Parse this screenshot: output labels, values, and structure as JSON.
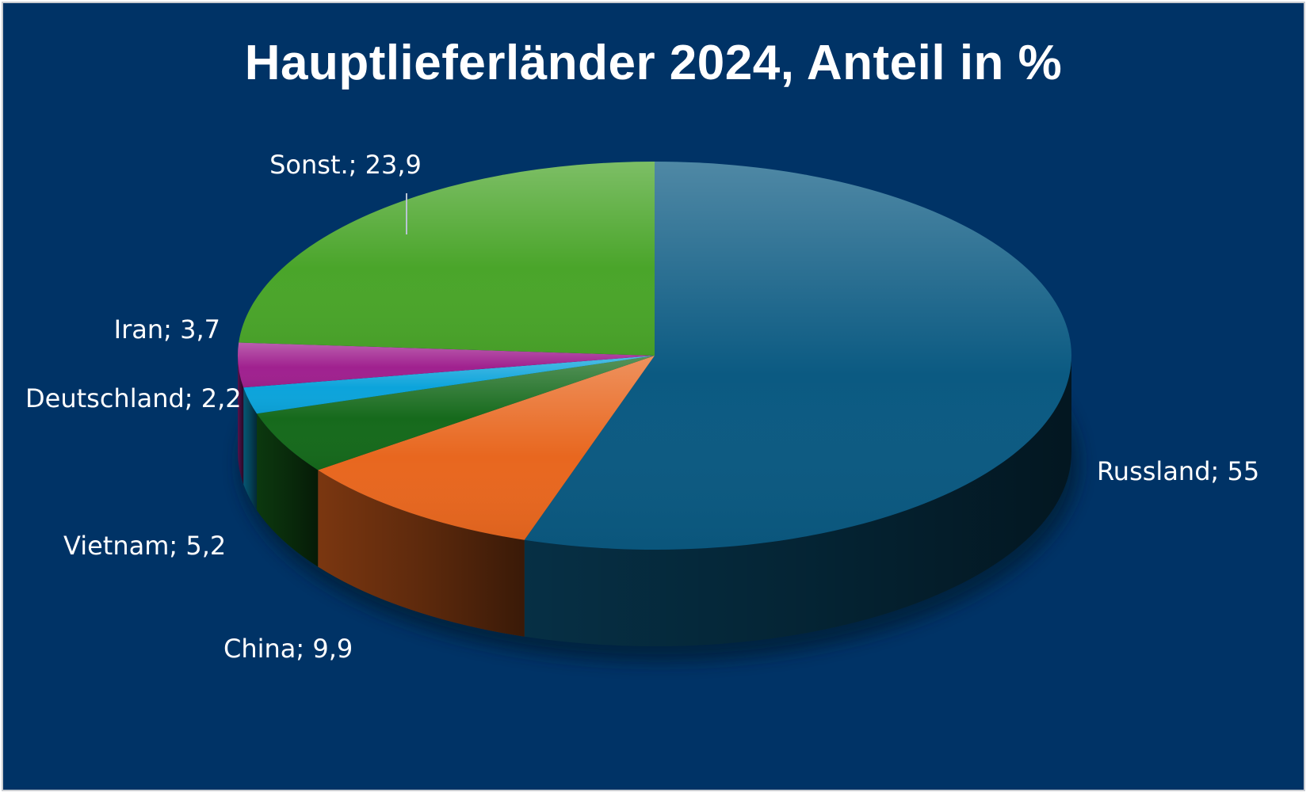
{
  "chart_data": {
    "type": "pie",
    "title": "Hauptlieferländer 2024, Anteil in %",
    "slices": [
      {
        "name": "Russland",
        "value": 55,
        "label": "Russland; 55",
        "color": "#0b5a82"
      },
      {
        "name": "China",
        "value": 9.9,
        "label": "China; 9,9",
        "color": "#e8671f"
      },
      {
        "name": "Vietnam",
        "value": 5.2,
        "label": "Vietnam; 5,2",
        "color": "#166a1c"
      },
      {
        "name": "Deutschland",
        "value": 2.2,
        "label": "Deutschland; 2,2",
        "color": "#0ca4db"
      },
      {
        "name": "Iran",
        "value": 3.7,
        "label": "Iran; 3,7",
        "color": "#a0218f"
      },
      {
        "name": "Sonst.",
        "value": 23.9,
        "label": "Sonst.; 23,9",
        "color": "#4aa52a"
      }
    ],
    "start_angle": "12 o'clock",
    "direction": "clockwise",
    "legend": "none",
    "data_labels": "outside"
  }
}
